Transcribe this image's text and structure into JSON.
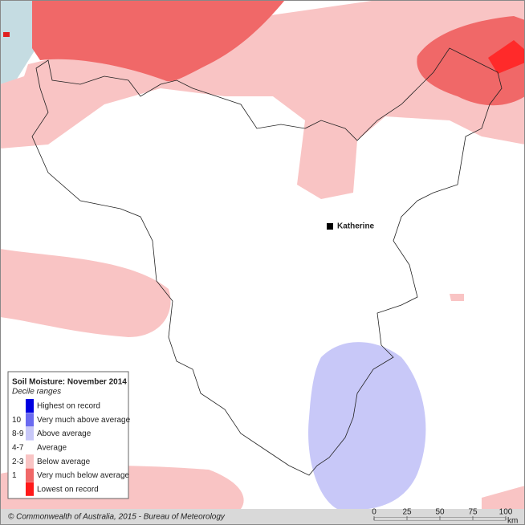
{
  "map": {
    "place": "Katherine"
  },
  "legend": {
    "title": "Soil Moisture: November 2014",
    "subtitle": "Decile ranges",
    "items": [
      {
        "label": "Highest on record",
        "color": "#0000e0"
      },
      {
        "code": "10",
        "label": "Very much above average",
        "color": "#6a6af0"
      },
      {
        "code": "8-9",
        "label": "Above average",
        "color": "#c8c8f8"
      },
      {
        "code": "4-7",
        "label": "Average",
        "color": "#ffffff"
      },
      {
        "code": "2-3",
        "label": "Below average",
        "color": "#f9c4c4"
      },
      {
        "code": "1",
        "label": "Very much below average",
        "color": "#f06868"
      },
      {
        "label": "Lowest on record",
        "color": "#ff1a1a"
      }
    ]
  },
  "footer": {
    "copyright": "© Commonwealth of Australia, 2015 - Bureau of Meteorology",
    "scale": {
      "ticks": [
        "0",
        "25",
        "50",
        "75",
        "100"
      ],
      "unit": "km"
    }
  }
}
